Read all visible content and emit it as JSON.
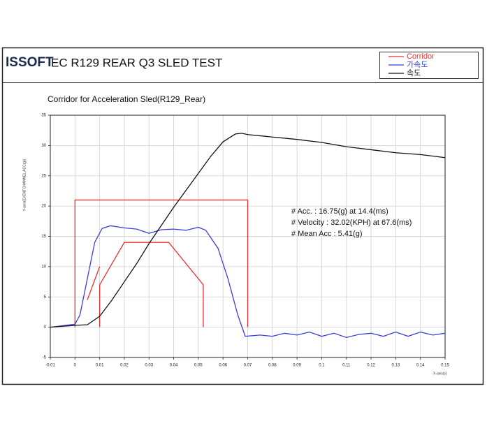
{
  "header": {
    "logo": "ISSOFT",
    "title": "EC R129 REAR Q3 SLED TEST"
  },
  "chart_data": {
    "type": "line",
    "title": "Corridor for Acceleration Sled(R129_Rear)",
    "x_label": "X-axis(s)",
    "y_label": "Y-axis(EVENTCHANNEL ACC(g))",
    "xlim": [
      -0.01,
      0.15
    ],
    "ylim": [
      -5,
      35
    ],
    "xticks": [
      -0.01,
      0,
      0.01,
      0.02,
      0.03,
      0.04,
      0.05,
      0.06,
      0.07,
      0.08,
      0.09,
      0.1,
      0.11,
      0.12,
      0.13,
      0.14,
      0.15
    ],
    "yticks": [
      -5,
      0,
      5,
      10,
      15,
      20,
      25,
      30,
      35
    ],
    "grid": true,
    "annotations": [
      "# Acc. : 16.75(g) at 14.4(ms)",
      "# Velocity : 32.02(KPH) at 67.6(ms)",
      "# Mean Acc : 5.41(g)"
    ],
    "series": [
      {
        "name": "Corridor",
        "color": "#e8322f",
        "x": [
          0,
          0,
          0.07,
          0.07,
          null,
          0.005,
          0.01,
          null,
          0.01,
          0.01,
          0.02,
          0.038,
          0.052,
          0.052
        ],
        "values": [
          0,
          21,
          21,
          0,
          null,
          4.5,
          10,
          null,
          0,
          7,
          14,
          14,
          7,
          0
        ]
      },
      {
        "name": "가속도",
        "color": "#3b3fd6",
        "x": [
          -0.01,
          0,
          0.002,
          0.005,
          0.008,
          0.011,
          0.0144,
          0.02,
          0.025,
          0.03,
          0.035,
          0.04,
          0.045,
          0.05,
          0.053,
          0.058,
          0.062,
          0.066,
          0.069,
          0.075,
          0.08,
          0.085,
          0.09,
          0.095,
          0.1,
          0.105,
          0.11,
          0.115,
          0.12,
          0.125,
          0.13,
          0.135,
          0.14,
          0.145,
          0.15
        ],
        "values": [
          0,
          0.5,
          2,
          8,
          14,
          16.3,
          16.75,
          16.4,
          16.2,
          15.5,
          16.1,
          16.2,
          16,
          16.5,
          16,
          13,
          8,
          2,
          -1.5,
          -1.3,
          -1.5,
          -1,
          -1.3,
          -0.8,
          -1.5,
          -1,
          -1.7,
          -1.2,
          -1,
          -1.5,
          -0.8,
          -1.5,
          -0.8,
          -1.3,
          -1
        ]
      },
      {
        "name": "속도",
        "color": "#111111",
        "x": [
          -0.01,
          0,
          0.005,
          0.01,
          0.015,
          0.02,
          0.025,
          0.03,
          0.035,
          0.04,
          0.045,
          0.05,
          0.055,
          0.06,
          0.065,
          0.0676,
          0.07,
          0.08,
          0.09,
          0.1,
          0.11,
          0.12,
          0.13,
          0.14,
          0.15
        ],
        "values": [
          0,
          0.3,
          0.4,
          1.8,
          4.5,
          7.5,
          10.5,
          13.8,
          16.8,
          19.8,
          22.6,
          25.4,
          28.2,
          30.6,
          31.9,
          32.02,
          31.8,
          31.4,
          31,
          30.5,
          29.8,
          29.3,
          28.8,
          28.5,
          28
        ]
      }
    ]
  }
}
